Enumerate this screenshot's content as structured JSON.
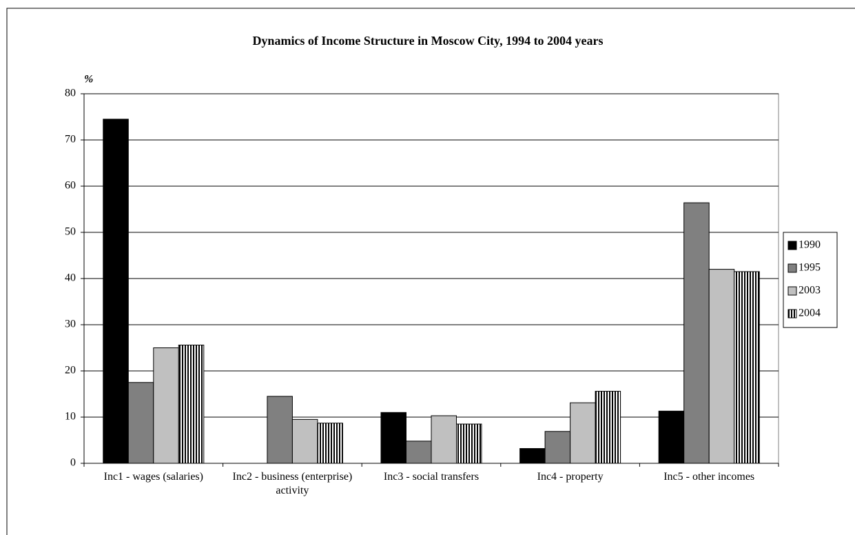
{
  "chart_data": {
    "type": "bar",
    "title": "Dynamics of Income Structure in Moscow City, 1994 to 2004 years",
    "y_label": "%",
    "categories": [
      "Inc1 - wages (salaries)",
      "Inc2 - business (enterprise) activity",
      "Inc3 -  social transfers",
      "Inc4 - property",
      "Inc5 - other incomes"
    ],
    "series": [
      {
        "name": "1990",
        "color": "#000000",
        "values": [
          74.5,
          0,
          11,
          3.2,
          11.3
        ]
      },
      {
        "name": "1995",
        "color": "#808080",
        "values": [
          17.5,
          14.5,
          4.8,
          6.9,
          56.4
        ]
      },
      {
        "name": "2003",
        "color": "#c0c0c0",
        "values": [
          25,
          9.5,
          10.3,
          13.1,
          42
        ]
      },
      {
        "name": "2004",
        "color": "#000000",
        "pattern": "vertical-stripes",
        "values": [
          25.6,
          8.7,
          8.5,
          15.6,
          41.5
        ]
      }
    ],
    "ylim": [
      0,
      80
    ],
    "yticks": [
      0,
      10,
      20,
      30,
      40,
      50,
      60,
      70,
      80
    ],
    "grid": true,
    "legend": "right"
  }
}
